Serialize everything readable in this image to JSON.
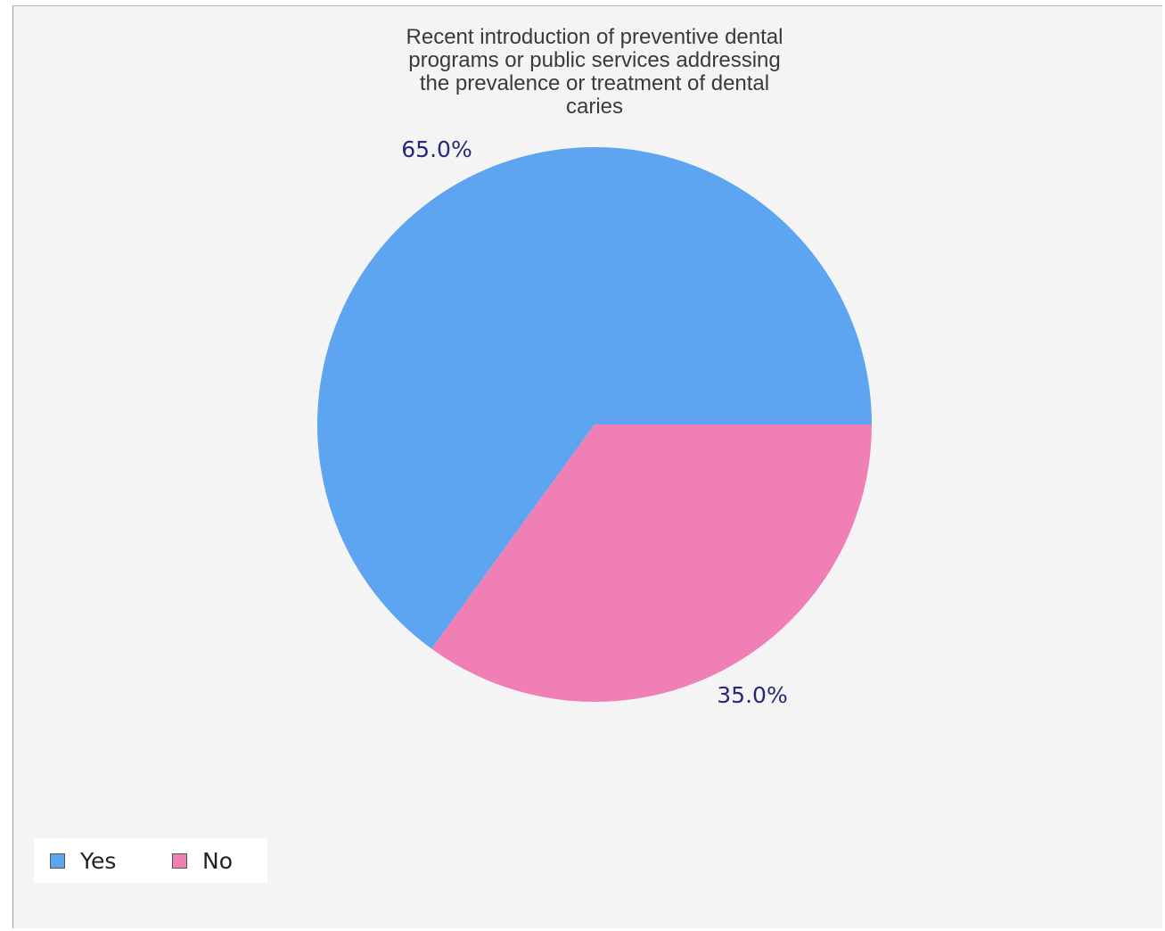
{
  "chart_data": {
    "type": "pie",
    "title_lines": [
      "Recent introduction of preventive dental",
      "programs or public services addressing",
      "the prevalence or treatment of dental",
      "caries"
    ],
    "slices": [
      {
        "label": "Yes",
        "value": 65.0,
        "value_label": "65.0%",
        "color": "#5da5f0"
      },
      {
        "label": "No",
        "value": 35.0,
        "value_label": "35.0%",
        "color": "#f07fb5"
      }
    ],
    "legend_position": "bottom-left"
  }
}
